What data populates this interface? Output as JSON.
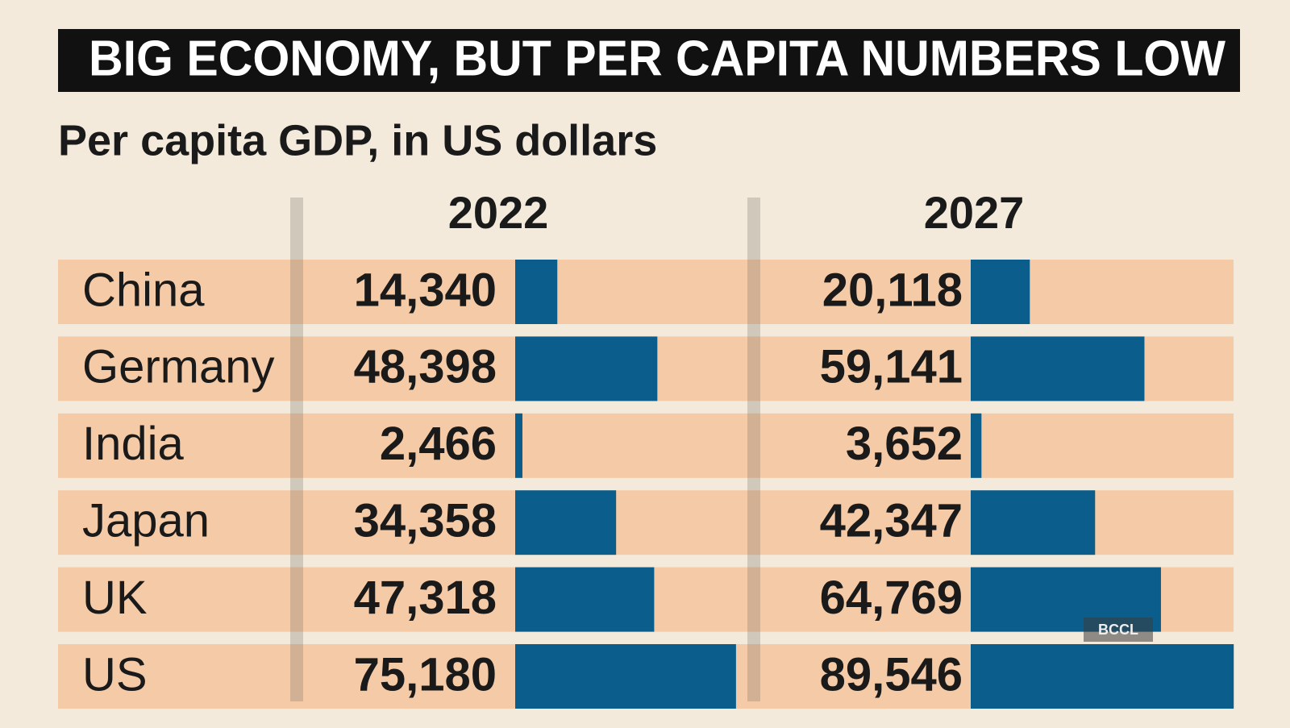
{
  "chart_data": {
    "type": "bar",
    "orientation": "horizontal",
    "title": "BIG ECONOMY, BUT  PER CAPITA NUMBERS LOW",
    "subtitle": "Per capita GDP, in US dollars",
    "categories": [
      "China",
      "Germany",
      "India",
      "Japan",
      "UK",
      "US"
    ],
    "series": [
      {
        "name": "2022",
        "color": "#0b5e8c",
        "values": [
          14340,
          48398,
          2466,
          34358,
          47318,
          75180
        ],
        "value_labels": [
          "14,340",
          "48,398",
          "2,466",
          "34,358",
          "47,318",
          "75,180"
        ]
      },
      {
        "name": "2027",
        "color": "#0b5e8c",
        "values": [
          20118,
          59141,
          3652,
          42347,
          64769,
          89546
        ],
        "value_labels": [
          "20,118",
          "59,141",
          "3,652",
          "42,347",
          "64,769",
          "89,546"
        ]
      }
    ],
    "band_color": "#f5caa6",
    "credit": "BCCL"
  }
}
